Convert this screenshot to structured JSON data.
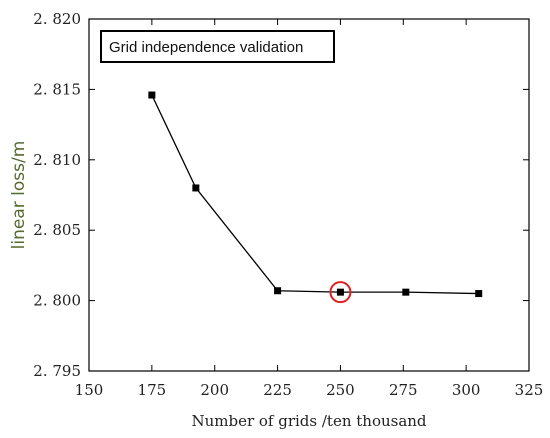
{
  "chart_data": {
    "type": "line",
    "title": "",
    "xlabel": "Number of grids /ten thousand",
    "ylabel": "linear loss/m",
    "xlim": [
      150,
      325
    ],
    "ylim": [
      2.795,
      2.82
    ],
    "x_ticks": [
      "150",
      "175",
      "200",
      "225",
      "250",
      "275",
      "300",
      "325"
    ],
    "y_ticks": [
      "2. 795",
      "2. 800",
      "2. 805",
      "2. 810",
      "2. 815",
      "2. 820"
    ],
    "legend": {
      "text": "Grid independence validation",
      "placement": "top-left"
    },
    "grid": false,
    "series": [
      {
        "x": [
          175,
          192.5,
          225,
          250,
          276,
          305
        ],
        "y": [
          2.8146,
          2.808,
          2.8007,
          2.8006,
          2.8006,
          2.8005
        ],
        "color": "#000000",
        "marker": "square"
      }
    ],
    "highlight": {
      "x": 250,
      "y": 2.8006,
      "color": "#e02020"
    }
  }
}
